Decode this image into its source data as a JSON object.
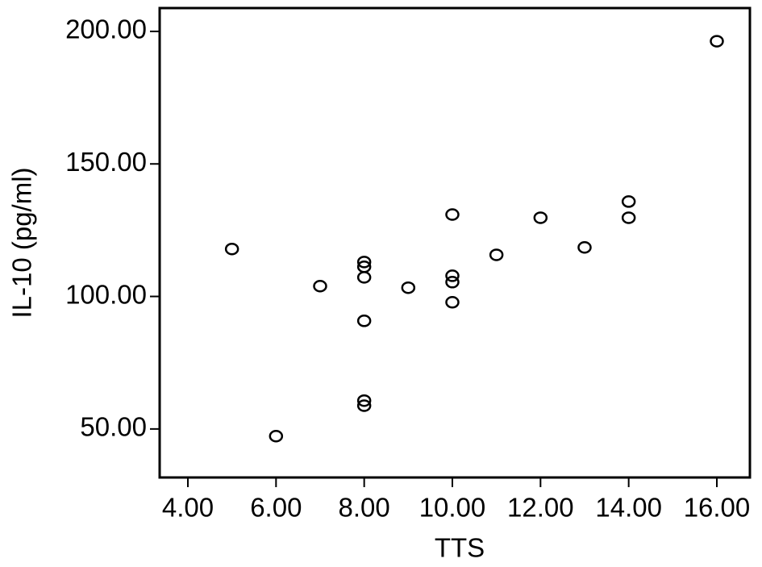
{
  "chart_data": {
    "type": "scatter",
    "xlabel": "TTS",
    "ylabel": "IL-10 (pg/ml)",
    "x": [
      5,
      6,
      7,
      8,
      8,
      8,
      8,
      8,
      8,
      9,
      10,
      10,
      10,
      10,
      11,
      12,
      13,
      14,
      14,
      16
    ],
    "values": [
      117.9,
      47.3,
      103.9,
      113.0,
      111.2,
      107.2,
      90.8,
      60.7,
      58.8,
      103.3,
      130.9,
      107.8,
      105.4,
      97.8,
      115.7,
      129.7,
      118.5,
      135.8,
      129.7,
      196.3
    ],
    "color": "#000000",
    "xlim": [
      3.36,
      16.75
    ],
    "ylim": [
      31.7,
      208.8
    ],
    "xticks": [
      {
        "value": 4,
        "label": "4.00"
      },
      {
        "value": 6,
        "label": "6.00"
      },
      {
        "value": 8,
        "label": "8.00"
      },
      {
        "value": 10,
        "label": "10.00"
      },
      {
        "value": 12,
        "label": "12.00"
      },
      {
        "value": 14,
        "label": "14.00"
      },
      {
        "value": 16,
        "label": "16.00"
      }
    ],
    "yticks": [
      {
        "value": 50,
        "label": "50.00"
      },
      {
        "value": 100,
        "label": "100.00"
      },
      {
        "value": 150,
        "label": "150.00"
      },
      {
        "value": 200,
        "label": "200.00"
      }
    ]
  }
}
